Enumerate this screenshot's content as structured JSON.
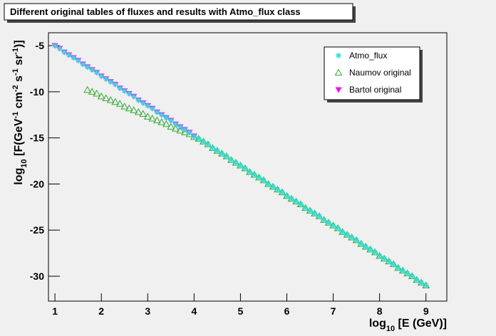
{
  "chart_data": {
    "type": "scatter",
    "title": "Different original tables of fluxes and results with Atmo_flux class",
    "xlabel": [
      {
        "text": "log"
      },
      {
        "text": "10",
        "pos": "sub"
      },
      {
        "text": " [E (GeV)]"
      }
    ],
    "ylabel": [
      {
        "text": "log"
      },
      {
        "text": "10",
        "pos": "sub"
      },
      {
        "text": " [F(GeV"
      },
      {
        "text": "-1",
        "pos": "sup"
      },
      {
        "text": " cm"
      },
      {
        "text": "-2",
        "pos": "sup"
      },
      {
        "text": " s"
      },
      {
        "text": "-1",
        "pos": "sup"
      },
      {
        "text": " sr"
      },
      {
        "text": "-1",
        "pos": "sup"
      },
      {
        "text": ")]"
      }
    ],
    "xlim": [
      0.86,
      9.45
    ],
    "ylim": [
      -32.7,
      -3.6
    ],
    "xticks": [
      1,
      2,
      3,
      4,
      5,
      6,
      7,
      8,
      9
    ],
    "yticks": [
      -30,
      -25,
      -20,
      -15,
      -10,
      -5
    ],
    "legend": "top-right",
    "series": [
      {
        "name": "Naumov original",
        "color": "#33aa33",
        "marker": "open-triangle",
        "x": [
          1.7,
          1.8,
          1.9,
          2.0,
          2.1,
          2.2,
          2.3,
          2.4,
          2.5,
          2.6,
          2.7,
          2.8,
          2.9,
          3.0,
          3.1,
          3.2,
          3.3,
          3.4,
          3.5,
          3.6,
          3.7,
          3.8,
          3.9,
          4.0,
          4.1,
          4.2,
          4.3,
          4.4,
          4.5,
          4.6,
          4.7,
          4.8,
          4.9,
          5.0,
          5.1,
          5.2,
          5.3,
          5.4,
          5.5,
          5.6,
          5.7,
          5.8,
          5.9,
          6.0,
          6.1,
          6.2,
          6.3,
          6.4,
          6.5,
          6.6,
          6.7,
          6.8,
          6.9,
          7.0,
          7.1,
          7.2,
          7.3,
          7.4,
          7.5,
          7.6,
          7.7,
          7.8,
          7.9,
          8.0,
          8.1,
          8.2,
          8.3,
          8.4,
          8.5,
          8.6,
          8.7,
          8.8,
          8.9,
          9.0
        ],
        "values": [
          -9.8,
          -10.0,
          -10.2,
          -10.5,
          -10.7,
          -10.9,
          -11.1,
          -11.3,
          -11.6,
          -11.8,
          -12.0,
          -12.2,
          -12.4,
          -12.7,
          -12.9,
          -13.1,
          -13.3,
          -13.5,
          -13.8,
          -14.0,
          -14.2,
          -14.4,
          -14.6,
          -14.9,
          -15.1,
          -15.4,
          -15.7,
          -16.1,
          -16.4,
          -16.7,
          -17.0,
          -17.4,
          -17.7,
          -18.0,
          -18.3,
          -18.7,
          -19.0,
          -19.3,
          -19.6,
          -20.0,
          -20.3,
          -20.6,
          -20.9,
          -21.3,
          -21.6,
          -21.9,
          -22.2,
          -22.6,
          -22.9,
          -23.2,
          -23.5,
          -23.9,
          -24.2,
          -24.5,
          -24.8,
          -25.2,
          -25.5,
          -25.8,
          -26.1,
          -26.5,
          -26.8,
          -27.1,
          -27.4,
          -27.8,
          -28.1,
          -28.4,
          -28.7,
          -29.1,
          -29.4,
          -29.7,
          -30.0,
          -30.4,
          -30.7,
          -31.0
        ]
      },
      {
        "name": "Bartol original",
        "color": "#ff00ff",
        "marker": "filled-down-triangle",
        "x": [
          1.0,
          1.1,
          1.2,
          1.3,
          1.4,
          1.5,
          1.6,
          1.7,
          1.8,
          1.9,
          2.0,
          2.1,
          2.2,
          2.3,
          2.4,
          2.5,
          2.6,
          2.7,
          2.8,
          2.9,
          3.0,
          3.1,
          3.2,
          3.3,
          3.4,
          3.5,
          3.6,
          3.7,
          3.8,
          3.9,
          4.0
        ],
        "values": [
          -5.0,
          -5.3,
          -5.7,
          -6.0,
          -6.3,
          -6.6,
          -7.0,
          -7.3,
          -7.6,
          -7.9,
          -8.3,
          -8.6,
          -8.9,
          -9.2,
          -9.6,
          -9.9,
          -10.2,
          -10.5,
          -10.9,
          -11.2,
          -11.5,
          -11.8,
          -12.2,
          -12.5,
          -12.8,
          -13.1,
          -13.5,
          -13.8,
          -14.1,
          -14.4,
          -14.8
        ]
      },
      {
        "name": "Atmo_flux",
        "color": "#33dddd",
        "marker": "star",
        "x": [
          1.0,
          1.1,
          1.2,
          1.3,
          1.4,
          1.5,
          1.6,
          1.7,
          1.8,
          1.9,
          2.0,
          2.1,
          2.2,
          2.3,
          2.4,
          2.5,
          2.6,
          2.7,
          2.8,
          2.9,
          3.0,
          3.1,
          3.2,
          3.3,
          3.4,
          3.5,
          3.6,
          3.7,
          3.8,
          3.9,
          4.0,
          4.1,
          4.2,
          4.3,
          4.4,
          4.5,
          4.6,
          4.7,
          4.8,
          4.9,
          5.0,
          5.1,
          5.2,
          5.3,
          5.4,
          5.5,
          5.6,
          5.7,
          5.8,
          5.9,
          6.0,
          6.1,
          6.2,
          6.3,
          6.4,
          6.5,
          6.6,
          6.7,
          6.8,
          6.9,
          7.0,
          7.1,
          7.2,
          7.3,
          7.4,
          7.5,
          7.6,
          7.7,
          7.8,
          7.9,
          8.0,
          8.1,
          8.2,
          8.3,
          8.4,
          8.5,
          8.6,
          8.7,
          8.8,
          8.9,
          9.0
        ],
        "values": [
          -5.0,
          -5.3,
          -5.7,
          -6.0,
          -6.3,
          -6.6,
          -7.0,
          -7.3,
          -7.6,
          -7.9,
          -8.3,
          -8.6,
          -8.9,
          -9.2,
          -9.6,
          -9.9,
          -10.2,
          -10.5,
          -10.9,
          -11.2,
          -11.5,
          -11.8,
          -12.2,
          -12.5,
          -12.8,
          -13.1,
          -13.5,
          -13.8,
          -14.1,
          -14.4,
          -14.8,
          -15.1,
          -15.4,
          -15.7,
          -16.1,
          -16.4,
          -16.7,
          -17.0,
          -17.4,
          -17.7,
          -18.0,
          -18.3,
          -18.7,
          -19.0,
          -19.3,
          -19.6,
          -20.0,
          -20.3,
          -20.6,
          -20.9,
          -21.3,
          -21.6,
          -21.9,
          -22.2,
          -22.6,
          -22.9,
          -23.2,
          -23.5,
          -23.9,
          -24.2,
          -24.5,
          -24.8,
          -25.2,
          -25.5,
          -25.8,
          -26.1,
          -26.5,
          -26.8,
          -27.1,
          -27.4,
          -27.8,
          -28.1,
          -28.4,
          -28.7,
          -29.1,
          -29.4,
          -29.7,
          -30.0,
          -30.4,
          -30.7,
          -31.0
        ]
      }
    ],
    "legend_order": [
      2,
      0,
      1
    ]
  }
}
